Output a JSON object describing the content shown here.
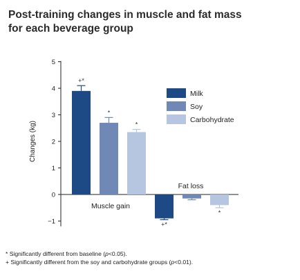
{
  "title_lines": [
    "Post-training changes in muscle and fat mass",
    "for each beverage group"
  ],
  "chart_data": {
    "type": "bar",
    "categories": [
      "Muscle gain",
      "Fat loss"
    ],
    "series": [
      {
        "name": "Milk",
        "color": "#1d4a85",
        "values": [
          3.9,
          -0.9
        ],
        "errors": [
          0.2,
          0.05
        ],
        "markers": [
          "+*",
          "+*"
        ]
      },
      {
        "name": "Soy",
        "color": "#7088b5",
        "values": [
          2.7,
          -0.15
        ],
        "errors": [
          0.2,
          0.05
        ],
        "markers": [
          "*",
          ""
        ]
      },
      {
        "name": "Carbohydrate",
        "color": "#b7c6e0",
        "values": [
          2.35,
          -0.4
        ],
        "errors": [
          0.1,
          0.1
        ],
        "markers": [
          "*",
          "*"
        ]
      }
    ],
    "ylabel": "Changes (kg)",
    "ylim": [
      -1.2,
      5
    ],
    "yticks": [
      -1,
      0,
      1,
      2,
      3,
      4,
      5
    ],
    "ytick_labels": [
      "−1",
      "0",
      "1",
      "2",
      "3",
      "4",
      "5"
    ],
    "legend_position": "right",
    "grid": false
  },
  "footnotes": [
    {
      "symbol": "* ",
      "text_before": "Significantly different from baseline (",
      "italic": "p",
      "text_after": "<0.05)."
    },
    {
      "symbol": "+ ",
      "text_before": "Significantly different from the soy and carbohydrate groups (",
      "italic": "p",
      "text_after": "<0.01)."
    }
  ]
}
